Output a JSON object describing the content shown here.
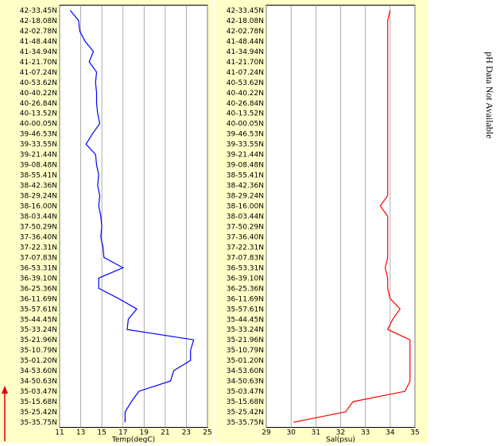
{
  "chart_data": [
    {
      "type": "line",
      "x_label": "Temp(degC)",
      "color": "#0000ff",
      "grid": true,
      "xlim": [
        11,
        25
      ],
      "xticks": [
        11,
        13,
        15,
        17,
        19,
        21,
        23,
        25
      ],
      "categories": [
        "42-33.45N",
        "42-18.08N",
        "42-02.78N",
        "41-48.44N",
        "41-34.94N",
        "41-21.70N",
        "41-07.24N",
        "40-53.62N",
        "40-40.22N",
        "40-26.84N",
        "40-13.52N",
        "40-00.05N",
        "39-46.53N",
        "39-33.55N",
        "39-21.44N",
        "39-08.48N",
        "38-55.41N",
        "38-42.36N",
        "38-29.24N",
        "38-16.00N",
        "38-03.44N",
        "37-50.29N",
        "37-36.40N",
        "37-22.31N",
        "37-07.83N",
        "36-53.31N",
        "36-39.10N",
        "36-25.36N",
        "36-11.69N",
        "35-57.61N",
        "35-44.45N",
        "35-33.24N",
        "35-21.96N",
        "35-10.79N",
        "35-01.20N",
        "34-53.60N",
        "34-50.63N",
        "35-03.47N",
        "35-15.68N",
        "35-25.42N",
        "35-35.75N"
      ],
      "values": [
        12.0,
        12.8,
        12.9,
        13.4,
        14.2,
        13.8,
        14.5,
        14.4,
        14.5,
        14.5,
        14.6,
        14.8,
        14.1,
        13.5,
        14.4,
        14.5,
        14.7,
        14.6,
        14.8,
        14.7,
        14.9,
        15.0,
        14.9,
        15.1,
        15.2,
        17.0,
        14.7,
        14.7,
        16.6,
        18.3,
        17.5,
        17.4,
        23.7,
        23.4,
        23.4,
        21.8,
        21.5,
        18.5,
        17.8,
        17.2,
        17.2
      ]
    },
    {
      "type": "line",
      "x_label": "Sal(psu)",
      "color": "#ff0000",
      "grid": true,
      "xlim": [
        29,
        35
      ],
      "xticks": [
        29,
        30,
        31,
        32,
        33,
        34,
        35
      ],
      "categories": [
        "42-33.45N",
        "42-18.08N",
        "42-02.78N",
        "41-48.44N",
        "41-34.94N",
        "41-21.70N",
        "41-07.24N",
        "40-53.62N",
        "40-40.22N",
        "40-26.84N",
        "40-13.52N",
        "40-00.05N",
        "39-46.53N",
        "39-33.55N",
        "39-21.44N",
        "39-08.48N",
        "38-55.41N",
        "38-42.36N",
        "38-29.24N",
        "38-16.00N",
        "38-03.44N",
        "37-50.29N",
        "37-36.40N",
        "37-22.31N",
        "37-07.83N",
        "36-53.31N",
        "36-39.10N",
        "36-25.36N",
        "36-11.69N",
        "35-57.61N",
        "35-44.45N",
        "35-33.24N",
        "35-21.96N",
        "35-10.79N",
        "35-01.20N",
        "34-53.60N",
        "34-50.63N",
        "35-03.47N",
        "35-15.68N",
        "35-25.42N",
        "35-35.75N"
      ],
      "values": [
        34.0,
        33.9,
        33.9,
        33.9,
        33.9,
        33.9,
        33.9,
        33.9,
        33.9,
        33.9,
        33.9,
        33.9,
        33.9,
        33.9,
        33.9,
        33.9,
        33.9,
        33.9,
        33.9,
        33.6,
        33.9,
        33.9,
        33.9,
        33.9,
        33.9,
        33.8,
        33.9,
        33.9,
        34.0,
        34.4,
        34.1,
        33.9,
        34.8,
        34.8,
        34.8,
        34.8,
        34.8,
        34.6,
        32.5,
        32.2,
        30.1
      ]
    }
  ],
  "note": "pH Data Not Available"
}
